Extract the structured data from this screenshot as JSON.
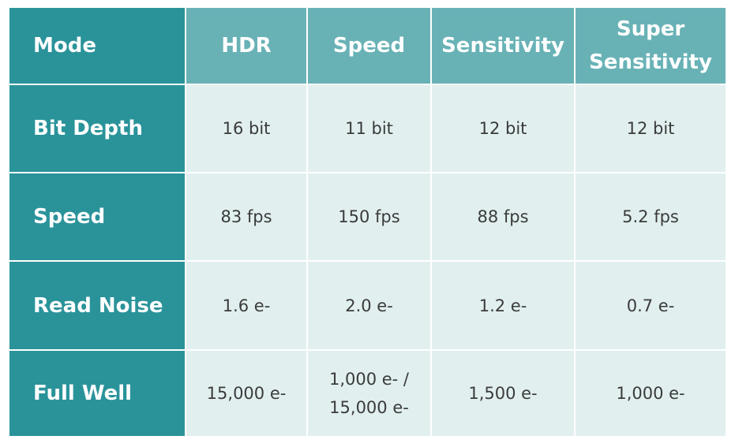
{
  "table": {
    "corner_label": "Mode",
    "columns": [
      "HDR",
      "Speed",
      "Sensitivity"
    ],
    "last_column": {
      "line1": "Super",
      "line2": "Sensitivity"
    },
    "rows": [
      {
        "label": "Bit Depth",
        "values": [
          "16 bit",
          "11 bit",
          "12 bit",
          "12 bit"
        ]
      },
      {
        "label": "Speed",
        "values": [
          "83 fps",
          "150 fps",
          "88 fps",
          "5.2 fps"
        ]
      },
      {
        "label": "Read Noise",
        "values": [
          "1.6 e-",
          "2.0 e-",
          "1.2 e-",
          "0.7 e-"
        ]
      },
      {
        "label": "Full Well",
        "values": [
          "15,000 e-",
          "",
          "1,500 e-",
          "1,000 e-"
        ],
        "speed_value": {
          "line1": "1,000 e- /",
          "line2": "15,000 e-"
        }
      }
    ]
  },
  "colors": {
    "row_header_bg": "#2a939a",
    "column_header_bg": "#68b2b6",
    "cell_bg": "#e1efef",
    "cell_text": "#3b3b3b",
    "header_text": "#ffffff"
  }
}
